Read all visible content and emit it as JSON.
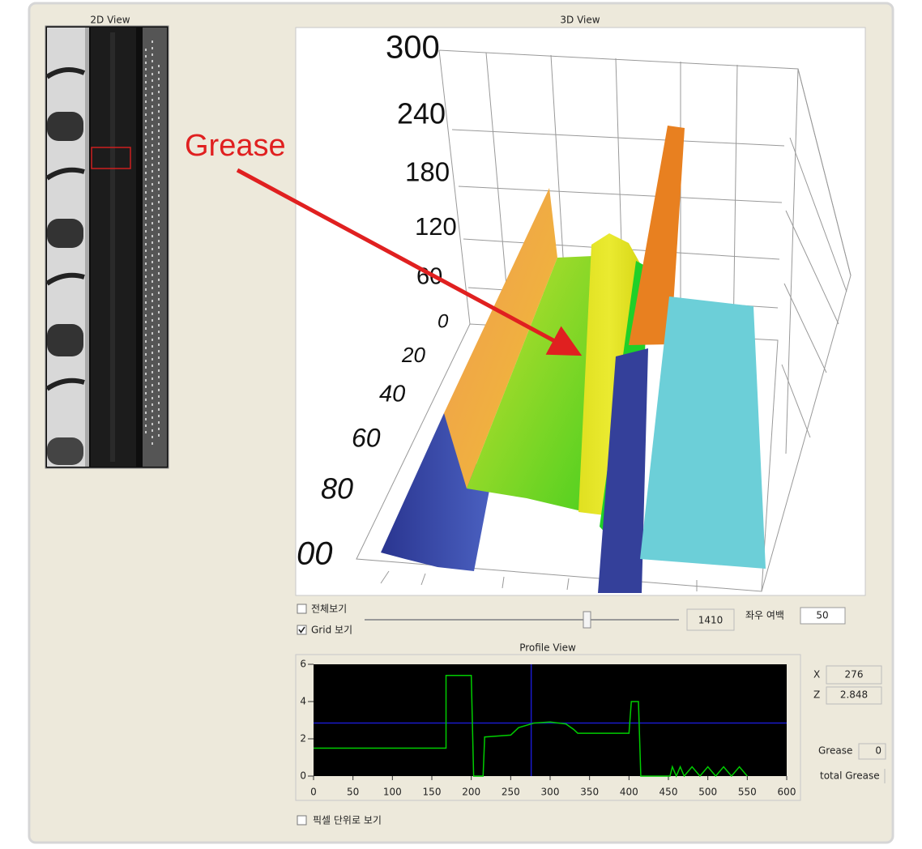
{
  "view_2d": {
    "title": "2D View"
  },
  "view_3d": {
    "title": "3D View",
    "z_axis_labels": [
      "300",
      "240",
      "180",
      "120",
      "60",
      "0"
    ],
    "depth_axis_labels": [
      "20",
      "40",
      "60",
      "80",
      "00"
    ]
  },
  "annotation": {
    "text": "Grease"
  },
  "controls": {
    "full_view": {
      "label": "전체보기",
      "checked": false
    },
    "grid_view": {
      "label": "Grid 보기",
      "checked": true
    },
    "slider_value": 1410,
    "margin_label": "좌우 여백",
    "margin_value": 50
  },
  "profile_view": {
    "type": "line",
    "title": "Profile View",
    "x": [
      0,
      168,
      168,
      200,
      203,
      215,
      217,
      250,
      260,
      280,
      300,
      320,
      330,
      335,
      400,
      403,
      412,
      415,
      452,
      455,
      460,
      465,
      470,
      480,
      490,
      500,
      510,
      520,
      530,
      540,
      550
    ],
    "values": [
      1.5,
      1.5,
      5.4,
      5.4,
      0,
      0,
      2.1,
      2.2,
      2.6,
      2.85,
      2.9,
      2.8,
      2.5,
      2.3,
      2.3,
      4.0,
      4.0,
      0,
      0,
      0.5,
      0,
      0.5,
      0,
      0.5,
      0,
      0.5,
      0,
      0.5,
      0,
      0.5,
      0
    ],
    "color": "#00cc00",
    "crosshair_color": "#1a1acc",
    "xlim": [
      0,
      600
    ],
    "ylim": [
      0,
      6
    ],
    "xticks": [
      0,
      50,
      100,
      150,
      200,
      250,
      300,
      350,
      400,
      450,
      500,
      550,
      600
    ],
    "yticks": [
      0,
      2,
      4,
      6
    ]
  },
  "readout": {
    "x_label": "X",
    "x": 276,
    "z_label": "Z",
    "z": 2.848,
    "grease_label": "Grease",
    "grease": 0,
    "total_grease_label": "total Grease"
  },
  "pixel_view": {
    "label": "픽셀 단위로 보기",
    "checked": false
  }
}
